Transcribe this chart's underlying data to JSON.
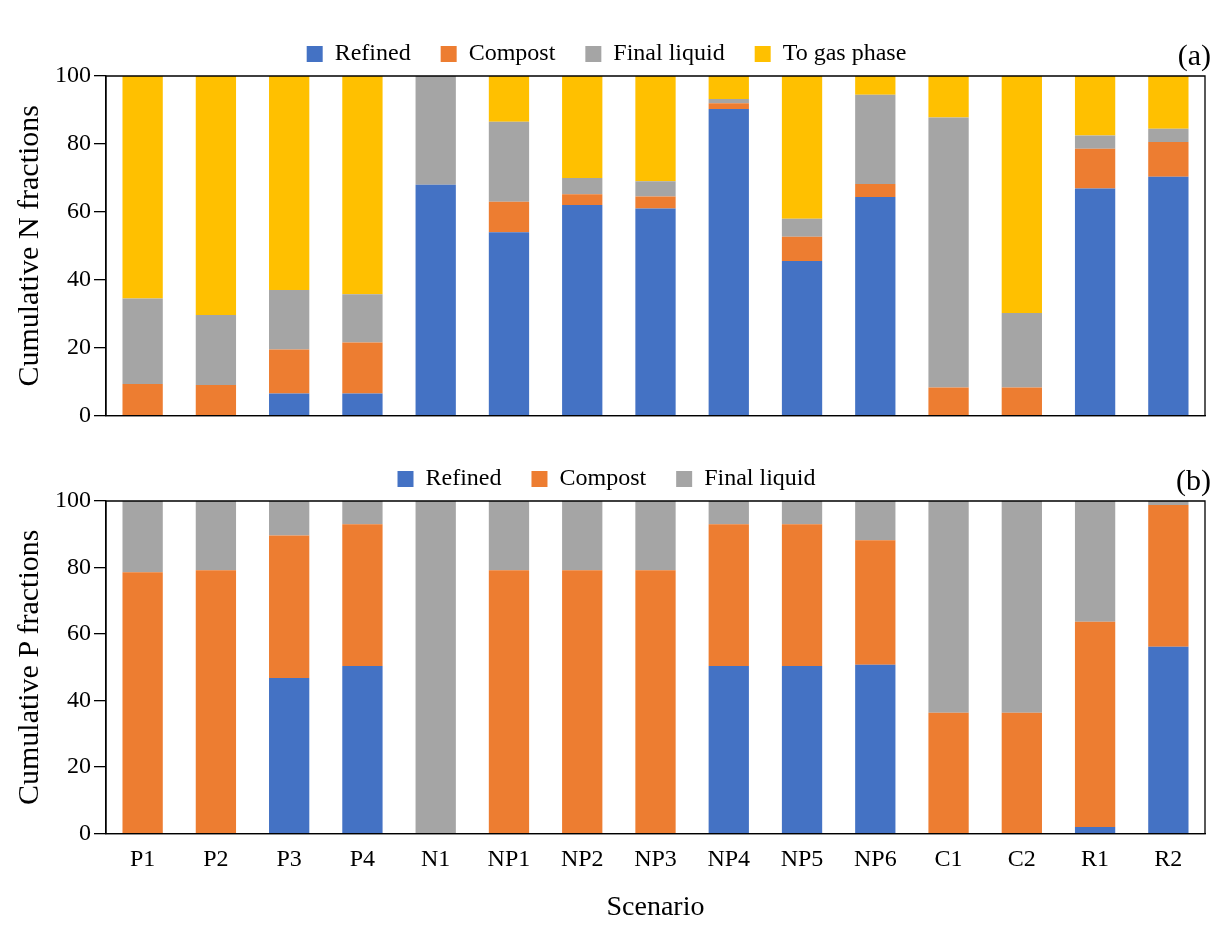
{
  "chart_data": [
    {
      "type": "bar",
      "stacked": true,
      "ylabel": "Cumulative N fractions",
      "annotations": [
        "(a)"
      ],
      "legend": "top",
      "tick_labels": "y",
      "grid": false,
      "categories": [
        null,
        null,
        null,
        null,
        null,
        null,
        null,
        null,
        null,
        null,
        null,
        null,
        null,
        null,
        null
      ],
      "ylim": [
        0,
        100
      ],
      "yticks": [
        0,
        20,
        40,
        60,
        80,
        100
      ],
      "series": [
        {
          "name": "Refined",
          "color": "#4472c4",
          "values": [
            0,
            0,
            6.5,
            6.5,
            68,
            54,
            62,
            61,
            90.3,
            45.5,
            64.4,
            0,
            0,
            66.9,
            70.3
          ]
        },
        {
          "name": "Compost",
          "color": "#ed7d31",
          "values": [
            9.3,
            9,
            13,
            15,
            0,
            9,
            3.2,
            3.5,
            1.7,
            7.2,
            3.8,
            8.3,
            8.3,
            11.7,
            10.3
          ]
        },
        {
          "name": "Final liquid",
          "color": "#a5a5a5",
          "values": [
            25.2,
            20.6,
            17.5,
            14.2,
            32,
            23.5,
            4.8,
            4.5,
            1.2,
            5.3,
            26.3,
            79.5,
            21.9,
            3.9,
            3.9
          ]
        },
        {
          "name": "To gas phase",
          "color": "#ffc000",
          "values": [
            65.5,
            70.4,
            63,
            64.3,
            0,
            13.5,
            30,
            31,
            6.8,
            42,
            5.5,
            12.2,
            69.8,
            17.5,
            15.5
          ]
        }
      ]
    },
    {
      "type": "bar",
      "stacked": true,
      "xlabel": "Scenario",
      "ylabel": "Cumulative P fractions",
      "annotations": [
        "(b)"
      ],
      "legend": "top",
      "grid": false,
      "categories": [
        "P1",
        "P2",
        "P3",
        "P4",
        "N1",
        "NP1",
        "NP2",
        "NP3",
        "NP4",
        "NP5",
        "NP6",
        "C1",
        "C2",
        "R1",
        "R2"
      ],
      "ylim": [
        0,
        100
      ],
      "yticks": [
        0,
        20,
        40,
        60,
        80,
        100
      ],
      "series": [
        {
          "name": "Refined",
          "color": "#4472c4",
          "values": [
            0,
            0,
            46.8,
            50.4,
            0,
            0,
            0,
            0,
            50.4,
            50.4,
            50.8,
            0,
            0,
            2,
            56.2
          ]
        },
        {
          "name": "Compost",
          "color": "#ed7d31",
          "values": [
            78.6,
            79.2,
            42.8,
            42.6,
            0,
            79.2,
            79.2,
            79.2,
            42.6,
            42.6,
            37.4,
            36.3,
            36.3,
            61.7,
            42.6
          ]
        },
        {
          "name": "Final liquid",
          "color": "#a5a5a5",
          "values": [
            21.4,
            20.8,
            10.4,
            7,
            100,
            20.8,
            20.8,
            20.8,
            7,
            7,
            11.8,
            63.7,
            63.7,
            36.3,
            1.2
          ]
        }
      ]
    }
  ]
}
